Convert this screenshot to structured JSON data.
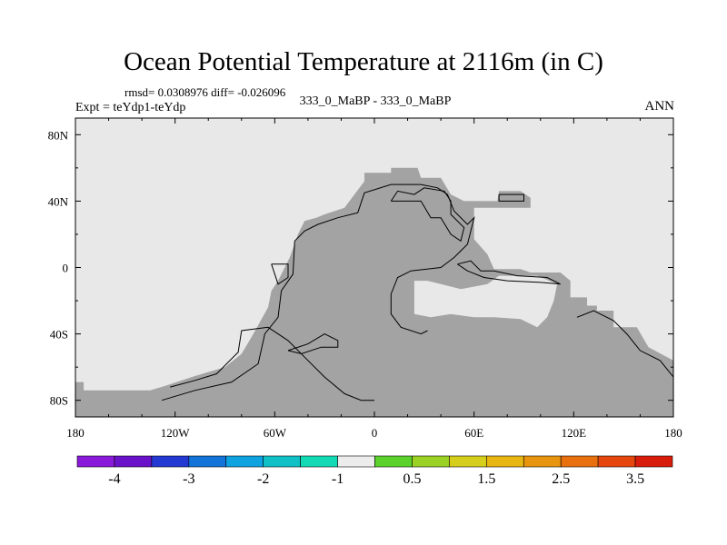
{
  "page": {
    "title": "Ocean Potential Temperature at 2116m (in C)",
    "stats": "rmsd= 0.0308976 diff= -0.026096",
    "expt": "Expt = teYdp1-teYdp",
    "subtitle": "333_0_MaBP - 333_0_MaBP",
    "season": "ANN"
  },
  "colors": {
    "background_fill": "#e8e8e8",
    "ocean_fill": "#a3a3a3",
    "contour": "#000000",
    "colorbar": [
      "#8a1ad9",
      "#6a12c9",
      "#2438d2",
      "#1273d8",
      "#0ea2e0",
      "#11c0c6",
      "#14d9b5",
      "#ececec",
      "#5bd12c",
      "#9bd122",
      "#d6ce1d",
      "#e8b613",
      "#e9940f",
      "#e9700f",
      "#e5470f",
      "#d91d0c"
    ]
  },
  "chart_data": {
    "type": "heatmap",
    "projection": "cylindrical equidistant",
    "field": "ocean potential temperature difference at 2116m",
    "units": "C",
    "rmsd": 0.0308976,
    "diff": -0.026096,
    "xlim": [
      -180,
      180
    ],
    "ylim": [
      -90,
      90
    ],
    "x_ticks": [
      -180,
      -120,
      -60,
      0,
      60,
      120,
      180
    ],
    "x_tick_labels": [
      "180",
      "120W",
      "60W",
      "0",
      "60E",
      "120E",
      "180"
    ],
    "y_ticks": [
      80,
      40,
      0,
      -40,
      -80
    ],
    "y_tick_labels": [
      "80N",
      "40N",
      "0",
      "40S",
      "80S"
    ],
    "colorbar_labels": [
      "-4",
      "-3",
      "-2",
      "-1",
      "0.5",
      "1.5",
      "2.5",
      "3.5"
    ],
    "grid": false,
    "ocean_region_outline": [
      [
        -180,
        -90
      ],
      [
        -180,
        -69
      ],
      [
        -175,
        -69
      ],
      [
        -175,
        -74
      ],
      [
        -135,
        -74
      ],
      [
        -125,
        -71
      ],
      [
        -110,
        -66
      ],
      [
        -100,
        -63
      ],
      [
        -90,
        -60
      ],
      [
        -80,
        -52
      ],
      [
        -74,
        -42
      ],
      [
        -64,
        -24
      ],
      [
        -62,
        -14
      ],
      [
        -58,
        -8
      ],
      [
        -51,
        6
      ],
      [
        -46,
        20
      ],
      [
        -42,
        28
      ],
      [
        -35,
        30
      ],
      [
        -30,
        32
      ],
      [
        -18,
        36
      ],
      [
        -6,
        52
      ],
      [
        -6,
        57
      ],
      [
        10,
        57
      ],
      [
        10,
        60
      ],
      [
        26,
        60
      ],
      [
        28,
        54
      ],
      [
        40,
        54
      ],
      [
        46,
        44
      ],
      [
        54,
        40
      ],
      [
        74,
        40
      ],
      [
        75,
        46
      ],
      [
        88,
        46
      ],
      [
        94,
        42
      ],
      [
        94,
        36
      ],
      [
        60,
        36
      ],
      [
        60,
        17
      ],
      [
        68,
        8
      ],
      [
        72,
        -1
      ],
      [
        88,
        -1
      ],
      [
        94,
        -3
      ],
      [
        112,
        -3
      ],
      [
        118,
        -8
      ],
      [
        118,
        -18
      ],
      [
        128,
        -18
      ],
      [
        128,
        -23
      ],
      [
        134,
        -23
      ],
      [
        134,
        -26
      ],
      [
        144,
        -26
      ],
      [
        144,
        -36
      ],
      [
        158,
        -36
      ],
      [
        165,
        -48
      ],
      [
        180,
        -56
      ],
      [
        180,
        -90
      ]
    ],
    "inner_water_outline": [
      [
        24,
        -8
      ],
      [
        24,
        -28
      ],
      [
        34,
        -30
      ],
      [
        46,
        -28
      ],
      [
        60,
        -30
      ],
      [
        72,
        -30
      ],
      [
        88,
        -31
      ],
      [
        98,
        -36
      ],
      [
        104,
        -30
      ],
      [
        108,
        -20
      ],
      [
        110,
        -10
      ],
      [
        98,
        -5
      ],
      [
        75,
        -5
      ],
      [
        68,
        -10
      ],
      [
        52,
        -13
      ],
      [
        40,
        -10
      ],
      [
        32,
        -8
      ]
    ],
    "contour_lines": [
      [
        [
          -128,
          -80
        ],
        [
          -108,
          -74
        ],
        [
          -86,
          -69
        ],
        [
          -70,
          -58
        ],
        [
          -66,
          -40
        ],
        [
          -58,
          -30
        ],
        [
          -56,
          -14
        ],
        [
          -49,
          -4
        ],
        [
          -48,
          16
        ],
        [
          -42,
          22
        ],
        [
          -34,
          26
        ],
        [
          -22,
          30
        ],
        [
          -10,
          33
        ],
        [
          -6,
          45
        ],
        [
          10,
          50
        ],
        [
          28,
          50
        ],
        [
          38,
          48
        ],
        [
          44,
          44
        ],
        [
          48,
          34
        ],
        [
          56,
          26
        ],
        [
          60,
          30
        ],
        [
          56,
          14
        ],
        [
          48,
          6
        ],
        [
          40,
          0
        ],
        [
          22,
          -2
        ],
        [
          14,
          -6
        ],
        [
          10,
          -16
        ],
        [
          10,
          -28
        ],
        [
          16,
          -36
        ],
        [
          28,
          -40
        ],
        [
          32,
          -38
        ]
      ],
      [
        [
          -123,
          -72
        ],
        [
          -108,
          -68
        ],
        [
          -95,
          -64
        ],
        [
          -82,
          -51
        ],
        [
          -80,
          -38
        ],
        [
          -64,
          -36
        ],
        [
          -52,
          -44
        ],
        [
          -42,
          -54
        ],
        [
          -30,
          -66
        ],
        [
          -18,
          -76
        ],
        [
          -8,
          -80
        ],
        [
          0,
          -80
        ]
      ],
      [
        [
          -52,
          -50
        ],
        [
          -40,
          -46
        ],
        [
          -30,
          -40
        ],
        [
          -22,
          -44
        ],
        [
          -22,
          -48
        ],
        [
          -32,
          -48
        ],
        [
          -44,
          -52
        ],
        [
          -52,
          -50
        ]
      ],
      [
        [
          -62,
          2
        ],
        [
          -52,
          2
        ],
        [
          -52,
          -6
        ],
        [
          -58,
          -10
        ],
        [
          -62,
          2
        ]
      ],
      [
        [
          10,
          40
        ],
        [
          28,
          40
        ],
        [
          34,
          30
        ],
        [
          40,
          30
        ],
        [
          46,
          20
        ],
        [
          52,
          16
        ],
        [
          54,
          24
        ],
        [
          46,
          32
        ],
        [
          46,
          40
        ],
        [
          42,
          46
        ],
        [
          30,
          48
        ],
        [
          24,
          44
        ],
        [
          14,
          46
        ],
        [
          10,
          40
        ]
      ],
      [
        [
          75,
          44
        ],
        [
          90,
          44
        ],
        [
          90,
          40
        ],
        [
          75,
          40
        ],
        [
          75,
          44
        ]
      ],
      [
        [
          50,
          2
        ],
        [
          58,
          4
        ],
        [
          64,
          -2
        ],
        [
          72,
          -2
        ],
        [
          86,
          -5
        ],
        [
          104,
          -6
        ],
        [
          112,
          -10
        ],
        [
          100,
          -9
        ],
        [
          80,
          -8
        ],
        [
          66,
          -6
        ],
        [
          56,
          -2
        ],
        [
          50,
          2
        ]
      ],
      [
        [
          122,
          -30
        ],
        [
          132,
          -26
        ],
        [
          144,
          -32
        ],
        [
          152,
          -40
        ],
        [
          160,
          -50
        ],
        [
          172,
          -56
        ],
        [
          180,
          -66
        ]
      ]
    ]
  }
}
